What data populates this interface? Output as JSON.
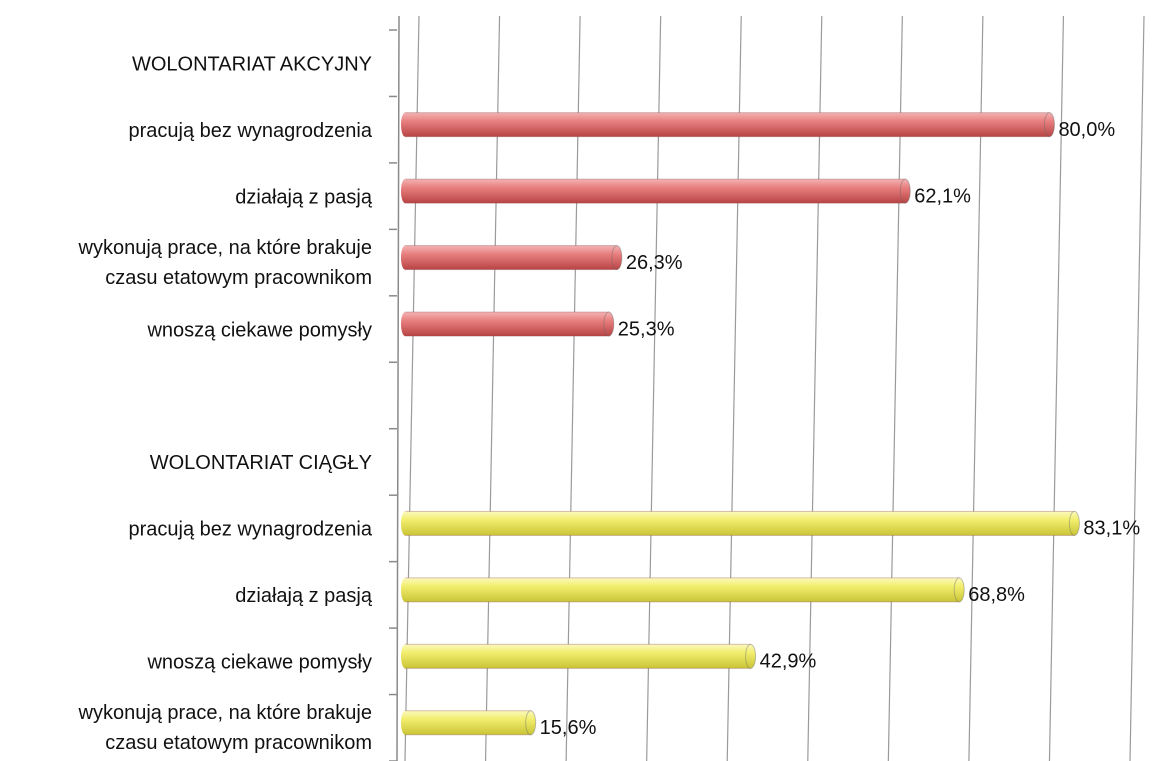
{
  "chart_data": {
    "type": "bar",
    "categories": [
      "WOLONTARIAT AKCYJNY",
      "pracują bez wynagrodzenia",
      "działają z pasją",
      [
        "wykonują prace, na które brakuje",
        "czasu etatowym pracownikom"
      ],
      "wnoszą ciekawe pomysły",
      null,
      "WOLONTARIAT CIĄGŁY",
      "pracują bez wynagrodzenia",
      "działają z pasją",
      "wnoszą ciekawe pomysły",
      [
        "wykonują prace, na które brakuje",
        "czasu etatowym pracownikom"
      ]
    ],
    "values": [
      null,
      80.0,
      62.1,
      26.3,
      25.3,
      null,
      null,
      83.1,
      68.8,
      42.9,
      15.6
    ],
    "value_labels": [
      null,
      "80,0%",
      "62,1%",
      "26,3%",
      "25,3%",
      null,
      null,
      "83,1%",
      "68,8%",
      "42,9%",
      "15,6%"
    ],
    "colors": [
      null,
      "#e06666",
      "#e06666",
      "#e06666",
      "#e06666",
      null,
      null,
      "#f2ee6e",
      "#f2ee6e",
      "#f2ee6e",
      "#f2ee6e"
    ],
    "xlim": [
      0,
      90
    ],
    "xticks": [
      0,
      10,
      20,
      30,
      40,
      50,
      60,
      70,
      80,
      90
    ],
    "grid": true
  }
}
